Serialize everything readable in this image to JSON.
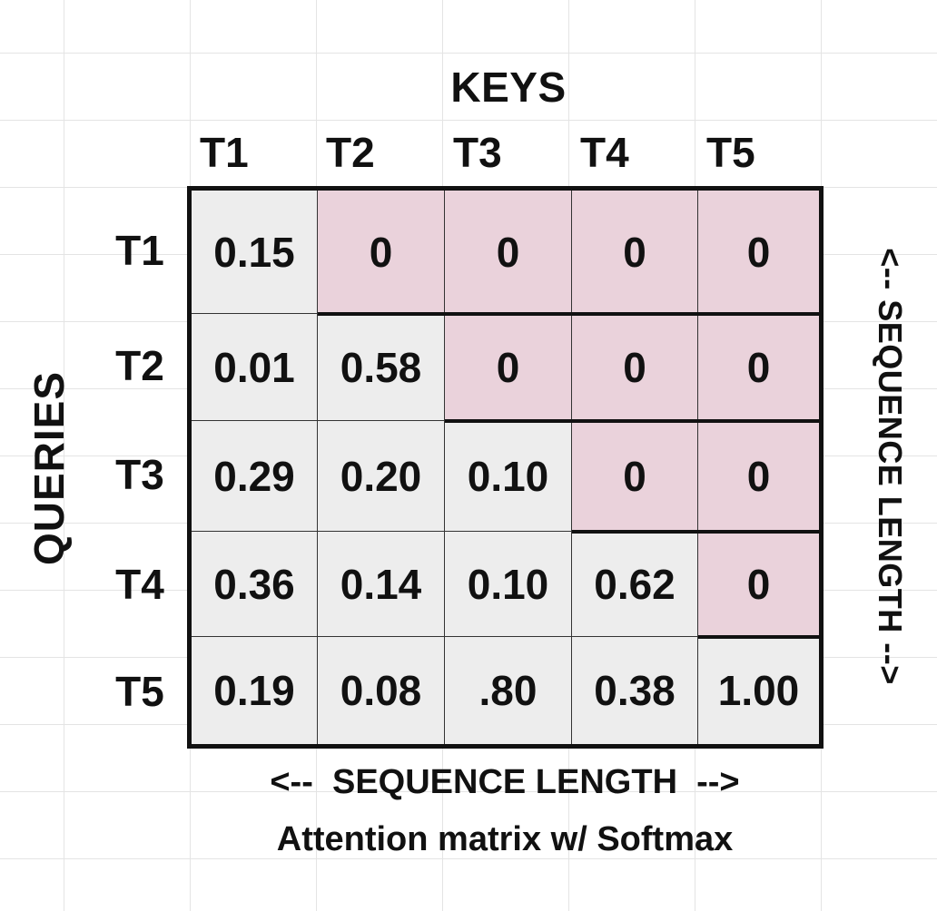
{
  "keys_label": "KEYS",
  "queries_label": "QUERIES",
  "column_headers": [
    "T1",
    "T2",
    "T3",
    "T4",
    "T5"
  ],
  "row_headers": [
    "T1",
    "T2",
    "T3",
    "T4",
    "T5"
  ],
  "matrix": [
    [
      "0.15",
      "0",
      "0",
      "0",
      "0"
    ],
    [
      "0.01",
      "0.58",
      "0",
      "0",
      "0"
    ],
    [
      "0.29",
      "0.20",
      "0.10",
      "0",
      "0"
    ],
    [
      "0.36",
      "0.14",
      "0.10",
      "0.62",
      "0"
    ],
    [
      "0.19",
      "0.08",
      ".80",
      "0.38",
      "1.00"
    ]
  ],
  "sequence_length_right": "<-- SEQUENCE LENGTH -->",
  "sequence_length_bottom": "<--  SEQUENCE LENGTH  -->",
  "caption": "Attention matrix w/ Softmax",
  "colors": {
    "masked_cell": "#ead2db",
    "unmasked_cell": "#ededed",
    "border": "#111111"
  }
}
